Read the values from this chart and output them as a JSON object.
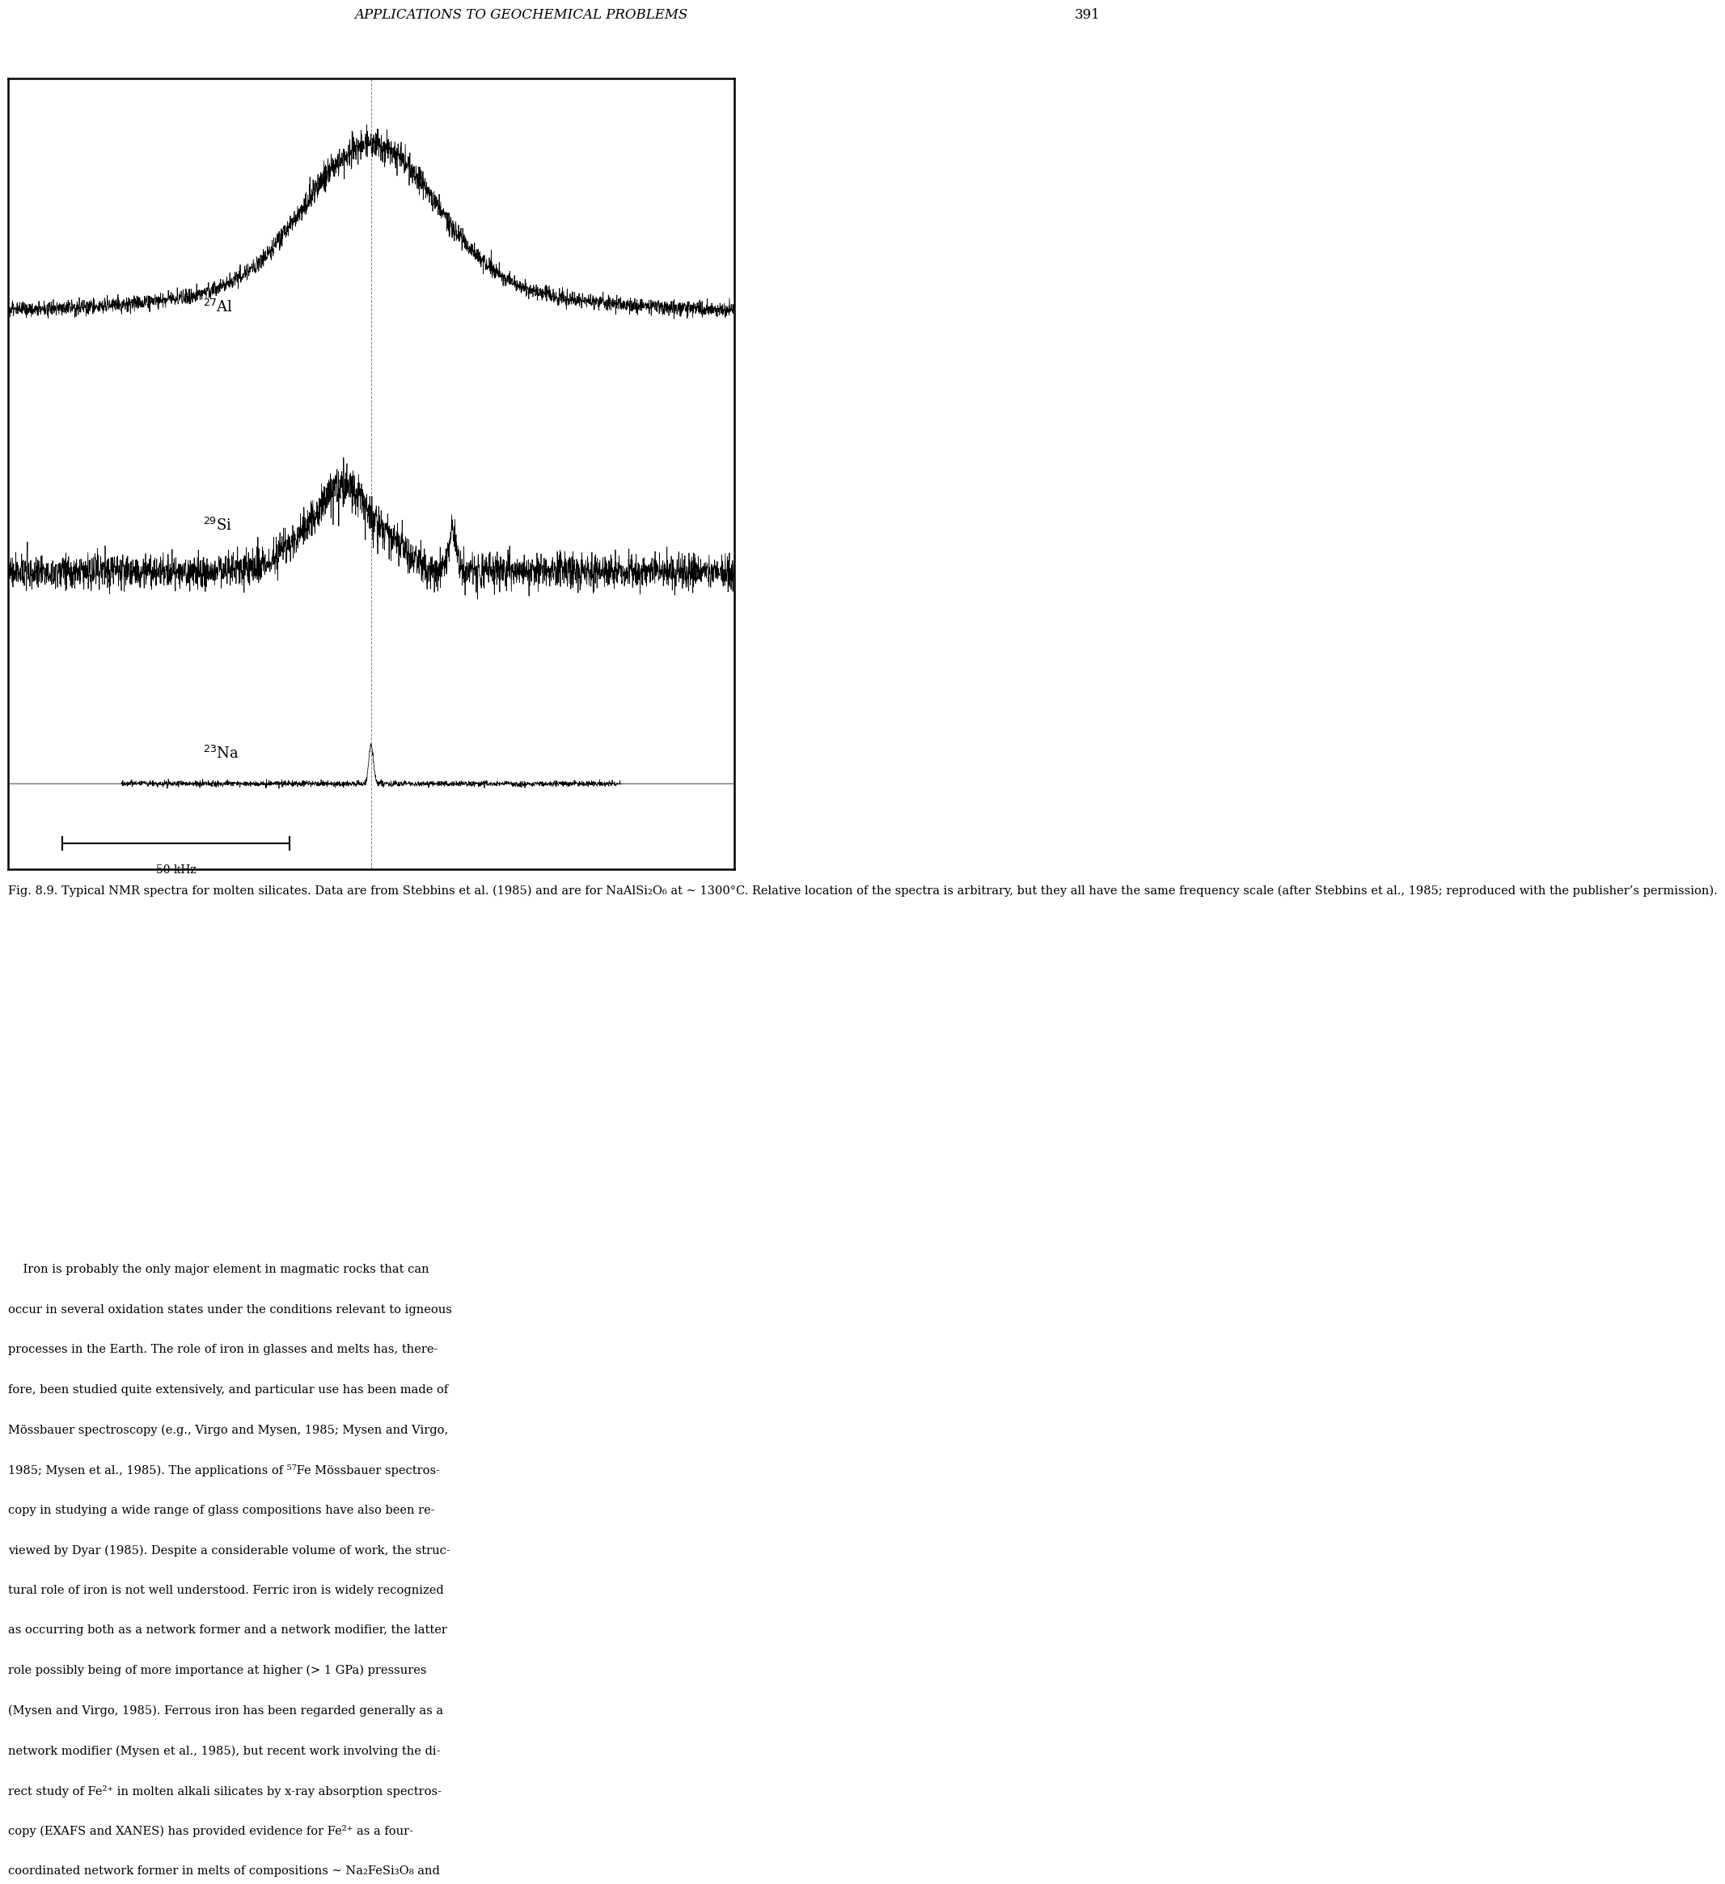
{
  "header_text": "APPLICATIONS TO GEOCHEMICAL PROBLEMS",
  "page_number": "391",
  "header_fontsize": 12,
  "fig_caption_bold": "Fig. 8.9.",
  "fig_caption_rest": " Typical NMR spectra for molten silicates. Data are from Stebbins et al. (1985) and are for NaAlSi₂O₆ at ∼ 1300°C. Relative location of the spectra is arbitrary, but they all have the same frequency scale (after Stebbins et al., 1985; reproduced with the publisher’s permission).",
  "caption_fontsize": 10.5,
  "body_lines": [
    "    Iron is probably the only major element in magmatic rocks that can",
    "occur in several oxidation states under the conditions relevant to igneous",
    "processes in the Earth. The role of iron in glasses and melts has, there-",
    "fore, been studied quite extensively, and particular use has been made of",
    "Mössbauer spectroscopy (e.g., Virgo and Mysen, 1985; Mysen and Virgo,",
    "1985; Mysen et al., 1985). The applications of ⁵⁷Fe Mössbauer spectros-",
    "copy in studying a wide range of glass compositions have also been re-",
    "viewed by Dyar (1985). Despite a considerable volume of work, the struc-",
    "tural role of iron is not well understood. Ferric iron is widely recognized",
    "as occurring both as a network former and a network modifier, the latter",
    "role possibly being of more importance at higher (> 1 GPa) pressures",
    "(Mysen and Virgo, 1985). Ferrous iron has been regarded generally as a",
    "network modifier (Mysen et al., 1985), but recent work involving the di-",
    "rect study of Fe²⁺ in molten alkali silicates by x-ray absorption spectros-",
    "copy (EXAFS and XANES) has provided evidence for Fe²⁺ as a four-",
    "coordinated network former in melts of compositions ∼ Na₂FeSi₃O₈ and"
  ],
  "body_fontsize": 10.5,
  "background_color": "#ffffff",
  "scale_bar_label": "50 kHz"
}
